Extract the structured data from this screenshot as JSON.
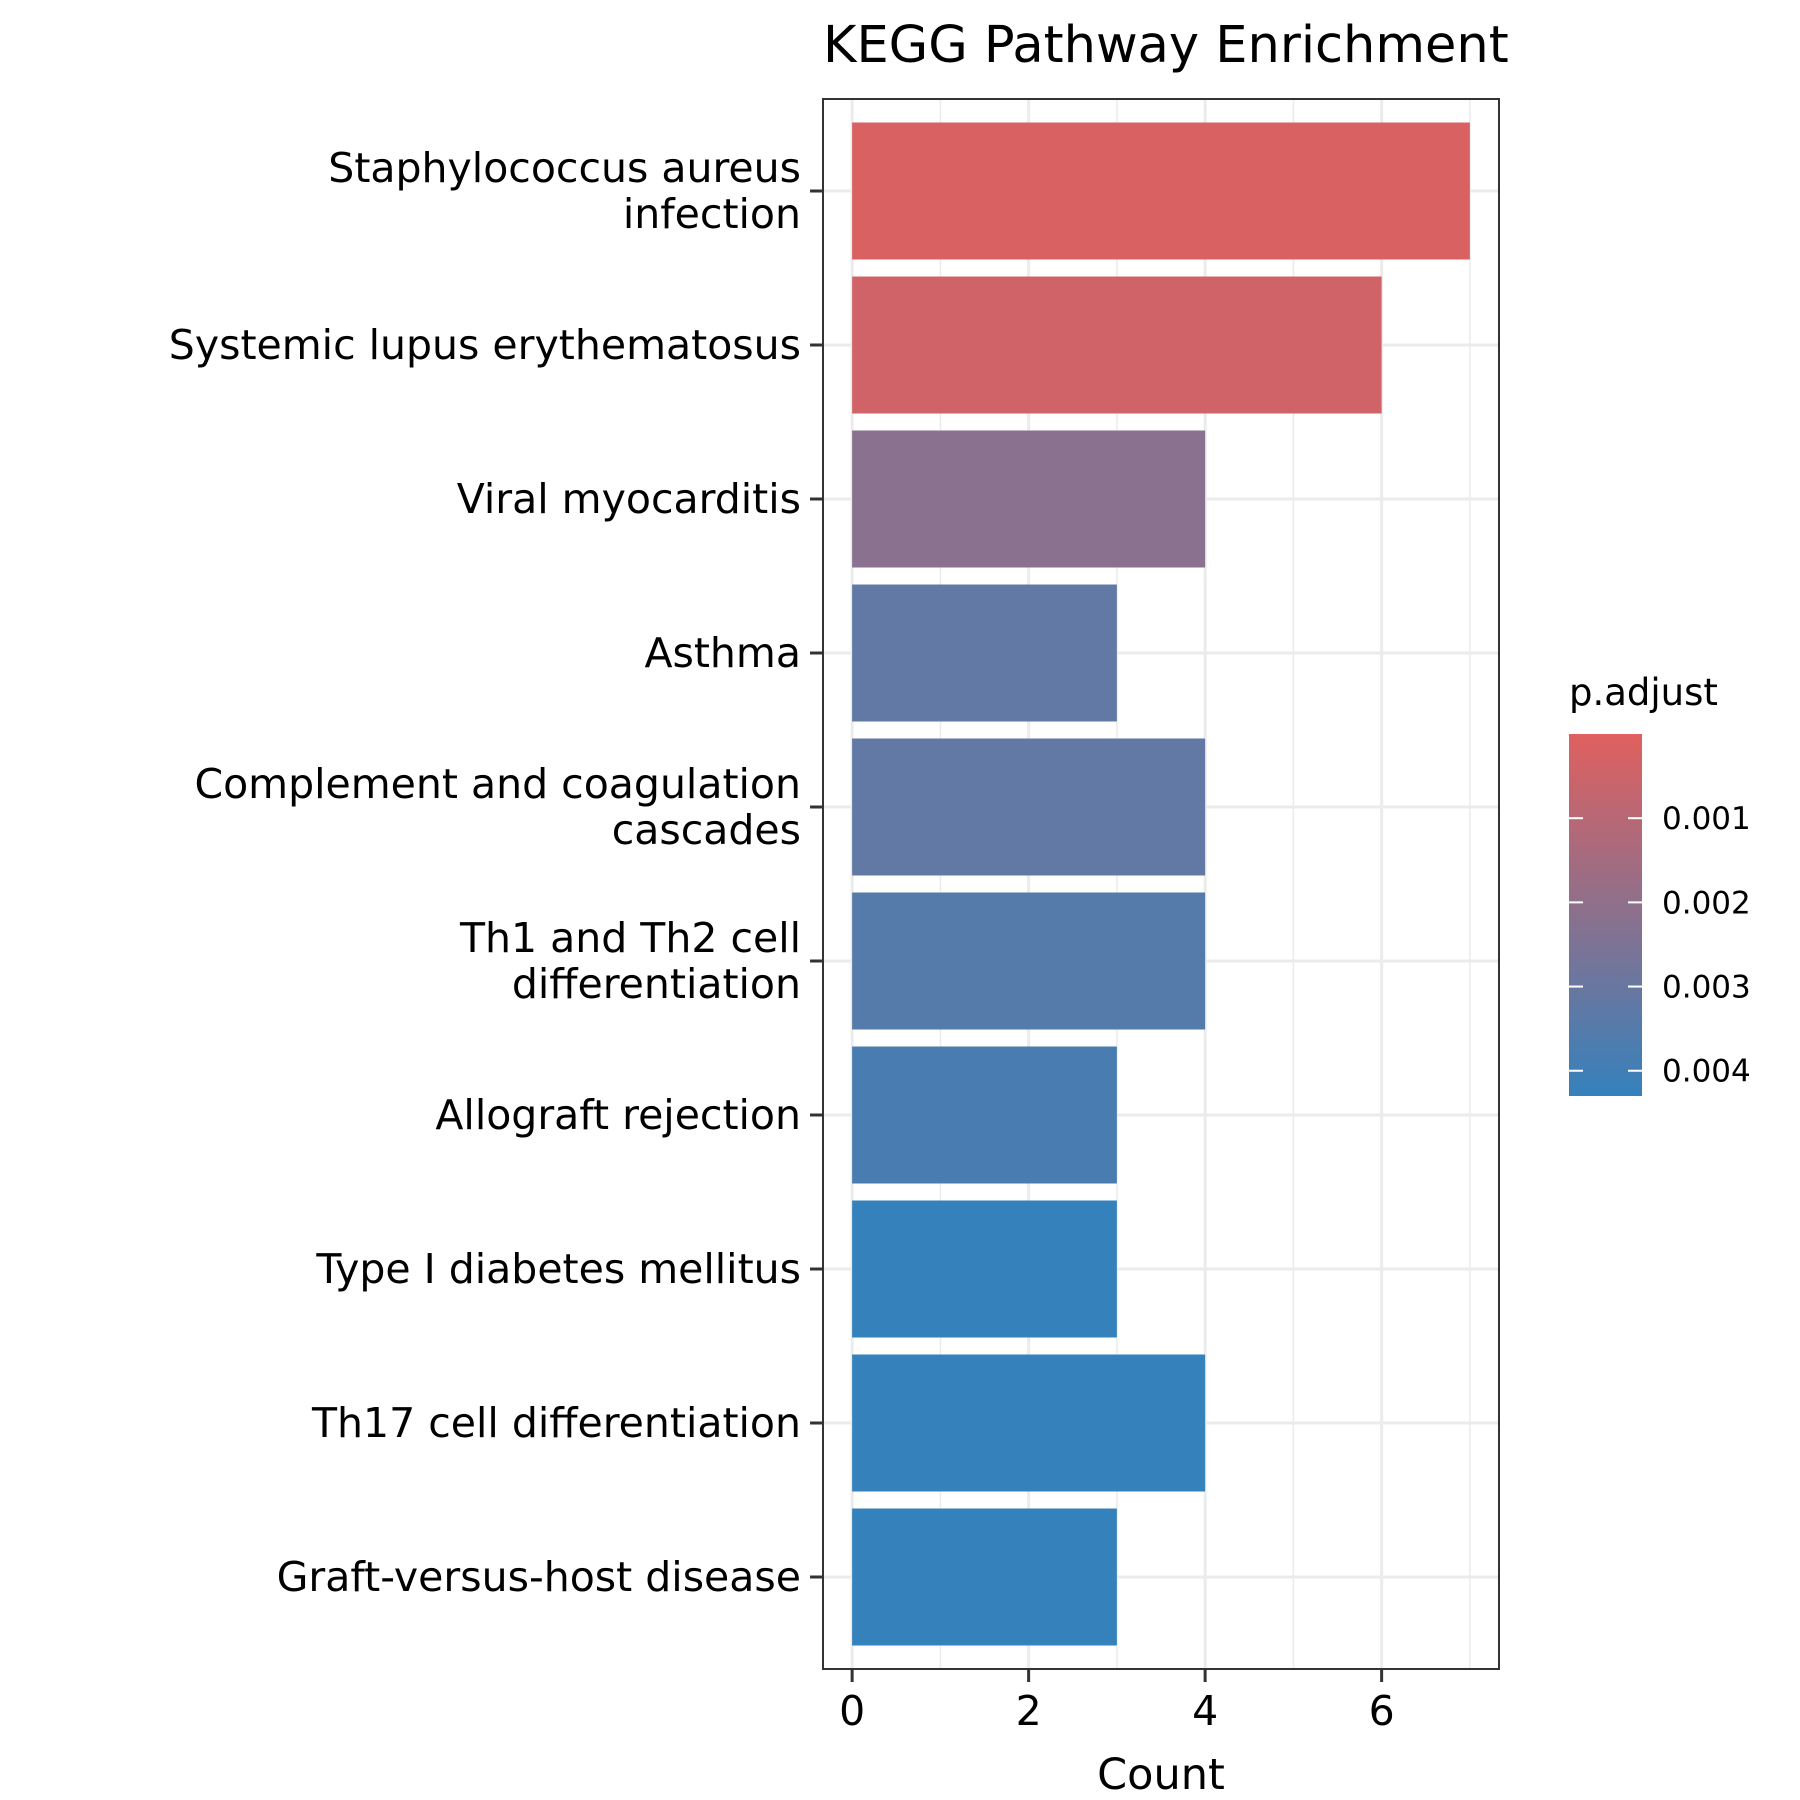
{
  "chart_data": {
    "type": "bar",
    "orientation": "horizontal",
    "title": "KEGG Pathway Enrichment",
    "xlabel": "Count",
    "ylabel": "",
    "xlim": [
      -0.33,
      7.33
    ],
    "xticks": [
      0,
      2,
      4,
      6
    ],
    "grid": true,
    "categories": [
      [
        "Staphylococcus aureus",
        "infection"
      ],
      [
        "Systemic lupus erythematosus"
      ],
      [
        "Viral myocarditis"
      ],
      [
        "Asthma"
      ],
      [
        "Complement and coagulation",
        "cascades"
      ],
      [
        "Th1 and Th2 cell",
        "differentiation"
      ],
      [
        "Allograft rejection"
      ],
      [
        "Type I diabetes mellitus"
      ],
      [
        "Th17 cell differentiation"
      ],
      [
        "Graft-versus-host disease"
      ]
    ],
    "values": [
      7,
      6,
      4,
      3,
      4,
      4,
      3,
      3,
      4,
      3
    ],
    "p_adjust": [
      0.00015,
      0.0004,
      0.0022,
      0.0032,
      0.0032,
      0.0035,
      0.0038,
      0.0045,
      0.0045,
      0.0045
    ],
    "legend": {
      "title": "p.adjust",
      "placement": "right",
      "ticks": [
        0.001,
        0.002,
        0.003,
        0.004
      ],
      "tick_labels": [
        "0.001",
        "0.002",
        "0.003",
        "0.004"
      ],
      "range": [
        0.0,
        0.0043
      ],
      "color_low": "#e0605f",
      "color_high": "#3581bc"
    }
  }
}
